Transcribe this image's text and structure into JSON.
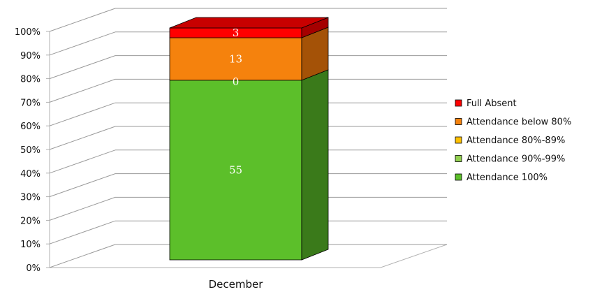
{
  "chart_data": {
    "type": "bar",
    "stacked": true,
    "three_d": true,
    "categories": [
      "December"
    ],
    "series": [
      {
        "name": "Attendance 100%",
        "values": [
          55
        ],
        "label": "55",
        "color": "#5cbf2a",
        "side": "#3a7a1a",
        "top": "#4ea024"
      },
      {
        "name": "Attendance 90%-99%",
        "values": [
          0
        ],
        "label": "0",
        "color": "#92d050",
        "side": "#6a9a38",
        "top": "#7fb844"
      },
      {
        "name": "Attendance 80%-89%",
        "values": [
          0
        ],
        "label": "",
        "color": "#ffc000",
        "side": "#b08400",
        "top": "#d9a300"
      },
      {
        "name": "Attendance below 80%",
        "values": [
          13
        ],
        "label": "13",
        "color": "#f5820d",
        "side": "#a45207",
        "top": "#d96f0a"
      },
      {
        "name": "Full Absent",
        "values": [
          3
        ],
        "label": "3",
        "color": "#ff0000",
        "side": "#a50000",
        "top": "#c80000"
      }
    ],
    "yticks": [
      "0%",
      "10%",
      "20%",
      "30%",
      "40%",
      "50%",
      "60%",
      "70%",
      "80%",
      "90%",
      "100%"
    ],
    "ylim": [
      0,
      100
    ],
    "ylabel_format": "percent",
    "grid": true,
    "legend_position": "right"
  }
}
